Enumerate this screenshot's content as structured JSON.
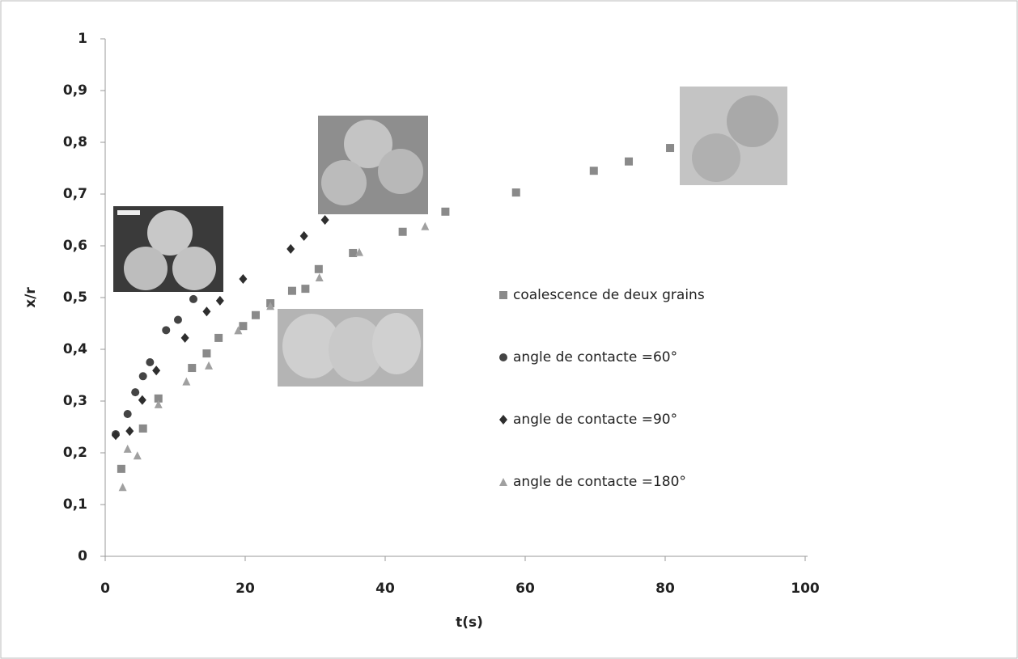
{
  "chart_data": {
    "type": "scatter",
    "x_label": "t(s)",
    "y_label": "x/r",
    "xlim": [
      0,
      100
    ],
    "xticks": [
      0,
      20,
      40,
      60,
      80,
      100
    ],
    "ylim": [
      0,
      1
    ],
    "yticks": [
      0,
      {
        "value": 0.1,
        "label": "0,1"
      },
      {
        "value": 0.2,
        "label": "0,2"
      },
      {
        "value": 0.3,
        "label": "0,3"
      },
      {
        "value": 0.4,
        "label": "0,4"
      },
      {
        "value": 0.5,
        "label": "0,5"
      },
      {
        "value": 0.6,
        "label": "0,6"
      },
      {
        "value": 0.7,
        "label": "0,7"
      },
      {
        "value": 0.8,
        "label": "0,8"
      },
      {
        "value": 0.9,
        "label": "0,9"
      },
      1
    ],
    "grid": false,
    "series": [
      {
        "name": "coalescence de deux grains",
        "color": "#8a8a8a",
        "marker": "square",
        "x": [
          2.3,
          5.4,
          7.6,
          12.4,
          14.5,
          16.2,
          19.7,
          21.5,
          23.6,
          26.7,
          28.6,
          30.5,
          35.4,
          42.5,
          48.6,
          58.7,
          69.8,
          74.8,
          80.7
        ],
        "values": [
          0.169,
          0.247,
          0.305,
          0.364,
          0.392,
          0.422,
          0.445,
          0.466,
          0.489,
          0.513,
          0.517,
          0.555,
          0.586,
          0.627,
          0.666,
          0.703,
          0.745,
          0.763,
          0.789
        ]
      },
      {
        "name": "angle de contacte =60°",
        "color": "#444444",
        "marker": "circle",
        "x": [
          1.5,
          3.2,
          4.3,
          5.4,
          6.4,
          8.7,
          10.4,
          12.6
        ],
        "values": [
          0.236,
          0.275,
          0.317,
          0.348,
          0.375,
          0.437,
          0.457,
          0.497
        ]
      },
      {
        "name": "angle de contacte =90°",
        "color": "#2e2e2e",
        "marker": "diamond",
        "x": [
          1.5,
          3.5,
          5.3,
          7.3,
          11.4,
          14.5,
          16.4,
          19.7,
          26.5,
          28.4,
          31.4
        ],
        "values": [
          0.234,
          0.242,
          0.302,
          0.359,
          0.422,
          0.473,
          0.494,
          0.536,
          0.594,
          0.619,
          0.65
        ]
      },
      {
        "name": "angle de contacte =180°",
        "color": "#a0a0a0",
        "marker": "triangle",
        "x": [
          2.5,
          3.2,
          4.6,
          7.6,
          11.6,
          14.8,
          19.0,
          23.6,
          30.6,
          36.3,
          45.7
        ],
        "values": [
          0.134,
          0.208,
          0.195,
          0.294,
          0.338,
          0.369,
          0.437,
          0.484,
          0.539,
          0.588,
          0.638
        ]
      }
    ]
  }
}
